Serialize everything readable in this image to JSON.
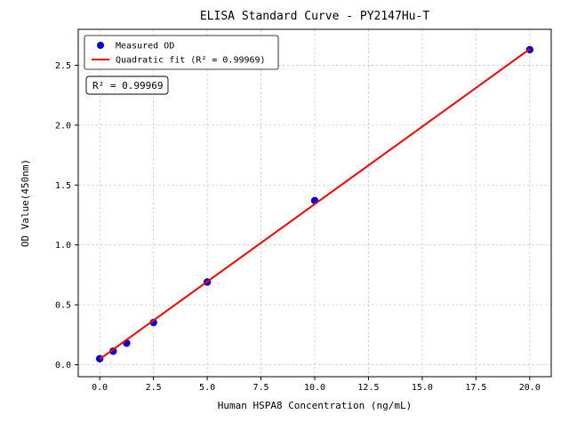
{
  "chart_data": {
    "type": "scatter",
    "title": "ELISA Standard Curve - PY2147Hu-T",
    "xlabel": "Human HSPA8 Concentration (ng/mL)",
    "ylabel": "OD Value(450nm)",
    "xlim": [
      -1,
      21
    ],
    "ylim": [
      -0.1,
      2.8
    ],
    "xticks": [
      0.0,
      2.5,
      5.0,
      7.5,
      10.0,
      12.5,
      15.0,
      17.5,
      20.0
    ],
    "yticks": [
      0.0,
      0.5,
      1.0,
      1.5,
      2.0,
      2.5
    ],
    "grid": true,
    "grid_color": "#c9c9c9",
    "axis_color": "#000000",
    "annotation": "R² = 0.99969",
    "legend": {
      "position": "upper-left",
      "entries": [
        {
          "label": "Measured OD",
          "marker": "point",
          "color": "#0000dd"
        },
        {
          "label": "Quadratic fit (R² = 0.99969)",
          "marker": "line",
          "color": "#ff0000"
        }
      ]
    },
    "series": [
      {
        "name": "Measured OD",
        "type": "scatter",
        "color": "#0000dd",
        "x": [
          0,
          0.625,
          1.25,
          2.5,
          5,
          10,
          20
        ],
        "y": [
          0.05,
          0.113,
          0.18,
          0.352,
          0.69,
          1.37,
          2.63
        ]
      },
      {
        "name": "Quadratic fit",
        "type": "line",
        "color": "#ff0000",
        "x": [
          0,
          20
        ],
        "y": [
          0.047,
          2.635
        ]
      }
    ]
  }
}
